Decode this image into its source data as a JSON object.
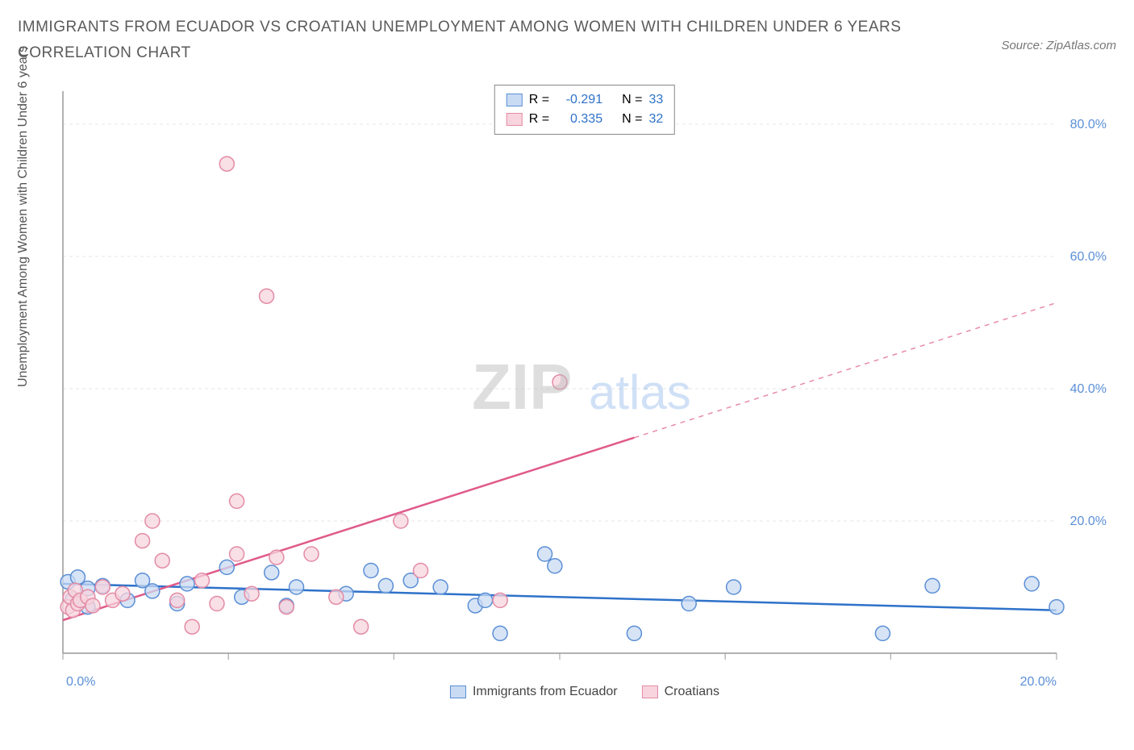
{
  "title": "IMMIGRANTS FROM ECUADOR VS CROATIAN UNEMPLOYMENT AMONG WOMEN WITH CHILDREN UNDER 6 YEARS CORRELATION CHART",
  "source": "Source: ZipAtlas.com",
  "ylabel": "Unemployment Among Women with Children Under 6 years",
  "watermark_a": "ZIP",
  "watermark_b": "atlas",
  "chart": {
    "type": "scatter",
    "xlim": [
      0,
      20
    ],
    "ylim": [
      0,
      85
    ],
    "xticks": [
      0,
      3.33,
      6.66,
      10,
      13.33,
      16.66,
      20
    ],
    "xtick_labels": [
      "0.0%",
      "",
      "",
      "",
      "",
      "",
      "20.0%"
    ],
    "yticks": [
      20,
      40,
      60,
      80
    ],
    "ytick_labels": [
      "20.0%",
      "40.0%",
      "60.0%",
      "80.0%"
    ],
    "grid_color": "#e4e4e4",
    "axis_color": "#999999",
    "tick_label_color": "#5b8fd6",
    "series": [
      {
        "name": "Immigrants from Ecuador",
        "short": "ecuador",
        "fill": "#c9dbf3",
        "stroke": "#5b8fd6",
        "line_color": "#2e72c9",
        "r_value": "-0.291",
        "n_value": "33",
        "trend": {
          "x1": 0,
          "y1": 10.5,
          "x2": 20,
          "y2": 6.5,
          "dash_from_x": 20
        },
        "points": [
          [
            0.1,
            10.8
          ],
          [
            0.2,
            8.2
          ],
          [
            0.3,
            11.5
          ],
          [
            0.5,
            9.8
          ],
          [
            0.5,
            7.0
          ],
          [
            0.8,
            10.2
          ],
          [
            1.3,
            8.0
          ],
          [
            1.6,
            11.0
          ],
          [
            1.8,
            9.4
          ],
          [
            2.3,
            7.5
          ],
          [
            2.5,
            10.5
          ],
          [
            3.3,
            13.0
          ],
          [
            3.6,
            8.5
          ],
          [
            4.2,
            12.2
          ],
          [
            4.5,
            7.2
          ],
          [
            4.7,
            10.0
          ],
          [
            5.7,
            9.0
          ],
          [
            6.2,
            12.5
          ],
          [
            6.5,
            10.2
          ],
          [
            7.0,
            11.0
          ],
          [
            7.6,
            10.0
          ],
          [
            8.3,
            7.2
          ],
          [
            8.5,
            8.0
          ],
          [
            8.8,
            3.0
          ],
          [
            9.7,
            15.0
          ],
          [
            9.9,
            13.2
          ],
          [
            11.5,
            3.0
          ],
          [
            12.6,
            7.5
          ],
          [
            13.5,
            10.0
          ],
          [
            16.5,
            3.0
          ],
          [
            17.5,
            10.2
          ],
          [
            19.5,
            10.5
          ],
          [
            20.0,
            7.0
          ]
        ]
      },
      {
        "name": "Croatians",
        "short": "croatians",
        "fill": "#f7d4de",
        "stroke": "#e38ba5",
        "line_color": "#e05a8a",
        "r_value": "0.335",
        "n_value": "32",
        "trend": {
          "x1": 0,
          "y1": 5.0,
          "x2": 20,
          "y2": 53.0,
          "dash_from_x": 11.5
        },
        "points": [
          [
            0.1,
            7.0
          ],
          [
            0.15,
            8.5
          ],
          [
            0.2,
            6.5
          ],
          [
            0.25,
            9.5
          ],
          [
            0.3,
            7.5
          ],
          [
            0.35,
            8.0
          ],
          [
            0.5,
            8.5
          ],
          [
            0.6,
            7.2
          ],
          [
            0.8,
            10.0
          ],
          [
            1.0,
            8.0
          ],
          [
            1.2,
            9.0
          ],
          [
            1.6,
            17.0
          ],
          [
            1.8,
            20.0
          ],
          [
            2.0,
            14.0
          ],
          [
            2.3,
            8.0
          ],
          [
            2.6,
            4.0
          ],
          [
            2.8,
            11.0
          ],
          [
            3.1,
            7.5
          ],
          [
            3.3,
            74.0
          ],
          [
            3.5,
            15.0
          ],
          [
            3.5,
            23.0
          ],
          [
            3.8,
            9.0
          ],
          [
            4.1,
            54.0
          ],
          [
            4.3,
            14.5
          ],
          [
            4.5,
            7.0
          ],
          [
            5.0,
            15.0
          ],
          [
            5.5,
            8.5
          ],
          [
            6.0,
            4.0
          ],
          [
            6.8,
            20.0
          ],
          [
            7.2,
            12.5
          ],
          [
            8.8,
            8.0
          ],
          [
            10.0,
            41.0
          ]
        ]
      }
    ]
  },
  "legend_bottom": [
    {
      "label": "Immigrants from Ecuador",
      "fill": "#c9dbf3",
      "stroke": "#5b8fd6"
    },
    {
      "label": "Croatians",
      "fill": "#f7d4de",
      "stroke": "#e38ba5"
    }
  ],
  "stat_prefix_r": "R =",
  "stat_prefix_n": "N ="
}
